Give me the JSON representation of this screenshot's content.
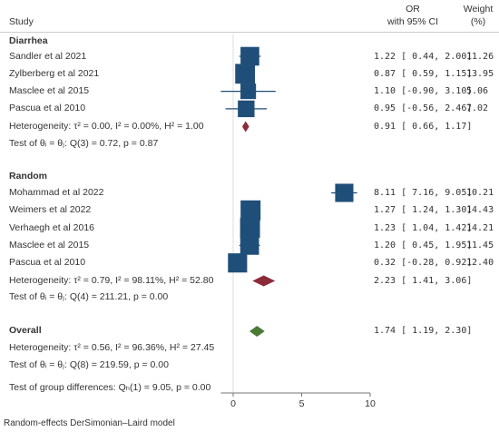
{
  "header": {
    "study": "Study",
    "or_line1": "OR",
    "or_line2": "with 95% CI",
    "weight_line1": "Weight",
    "weight_line2": "(%)"
  },
  "footer_note": "Random-effects DerSimonian–Laird model",
  "overall_label": "Overall",
  "overall_ci_text": "1.74 [ 1.19, 2.30]",
  "overall_heterogeneity": "Heterogeneity: τ² = 0.56, I² = 96.36%, H² = 27.45",
  "overall_test": "Test of θᵢ = θⱼ: Q(8) = 219.59, p = 0.00",
  "group_diff_test": "Test of group differences: Qₕ(1) = 9.05, p = 0.00",
  "colors": {
    "study_marker": "#1f4e79",
    "diarrhea_diamond": "#8b2b3a",
    "random_diamond": "#8b2b3a",
    "overall_diamond": "#4a7a35",
    "text": "#333333",
    "rule": "#cccccc"
  },
  "chart_data": {
    "type": "forest",
    "effect_measure": "OR",
    "x_ticks": [
      "0",
      "5",
      "10"
    ],
    "xlim": [
      -1,
      10
    ],
    "reference_line": 0,
    "groups": [
      {
        "name": "Diarrhea",
        "studies": [
          {
            "label": "Sandler et al 2021",
            "or": 1.22,
            "lo": 0.44,
            "hi": 2.0,
            "ci_text": "1.22 [ 0.44, 2.00]",
            "weight": "11.26"
          },
          {
            "label": "Zylberberg et al 2021",
            "or": 0.87,
            "lo": 0.59,
            "hi": 1.15,
            "ci_text": "0.87 [ 0.59, 1.15]",
            "weight": "13.95"
          },
          {
            "label": "Masclee et al 2015",
            "or": 1.1,
            "lo": -0.9,
            "hi": 3.1,
            "ci_text": "1.10 [-0.90, 3.10]",
            "weight": "5.06"
          },
          {
            "label": "Pascua et al 2010",
            "or": 0.95,
            "lo": -0.56,
            "hi": 2.46,
            "ci_text": "0.95 [-0.56, 2.46]",
            "weight": "7.02"
          }
        ],
        "heterogeneity": "Heterogeneity: τ² = 0.00, I² = 0.00%, H² = 1.00",
        "pooled": {
          "or": 0.91,
          "lo": 0.66,
          "hi": 1.17,
          "ci_text": "0.91 [ 0.66, 1.17]"
        },
        "test": "Test of θᵢ = θⱼ: Q(3) = 0.72, p = 0.87"
      },
      {
        "name": "Random",
        "studies": [
          {
            "label": "Mohammad et al 2022",
            "or": 8.11,
            "lo": 7.16,
            "hi": 9.05,
            "ci_text": "8.11 [ 7.16, 9.05]",
            "weight": "10.21"
          },
          {
            "label": "Weimers et al 2022",
            "or": 1.27,
            "lo": 1.24,
            "hi": 1.3,
            "ci_text": "1.27 [ 1.24, 1.30]",
            "weight": "14.43"
          },
          {
            "label": "Verhaegh et al 2016",
            "or": 1.23,
            "lo": 1.04,
            "hi": 1.42,
            "ci_text": "1.23 [ 1.04, 1.42]",
            "weight": "14.21"
          },
          {
            "label": "Masclee et al 2015",
            "or": 1.2,
            "lo": 0.45,
            "hi": 1.95,
            "ci_text": "1.20 [ 0.45, 1.95]",
            "weight": "11.45"
          },
          {
            "label": "Pascua et al 2010",
            "or": 0.32,
            "lo": -0.28,
            "hi": 0.92,
            "ci_text": "0.32 [-0.28, 0.92]",
            "weight": "12.40"
          }
        ],
        "heterogeneity": "Heterogeneity: τ² = 0.79, I² = 98.11%, H² = 52.80",
        "pooled": {
          "or": 2.23,
          "lo": 1.41,
          "hi": 3.06,
          "ci_text": "2.23 [ 1.41, 3.06]"
        },
        "test": "Test of θᵢ = θⱼ: Q(4) = 211.21, p = 0.00"
      }
    ],
    "overall": {
      "or": 1.74,
      "lo": 1.19,
      "hi": 2.3
    }
  }
}
